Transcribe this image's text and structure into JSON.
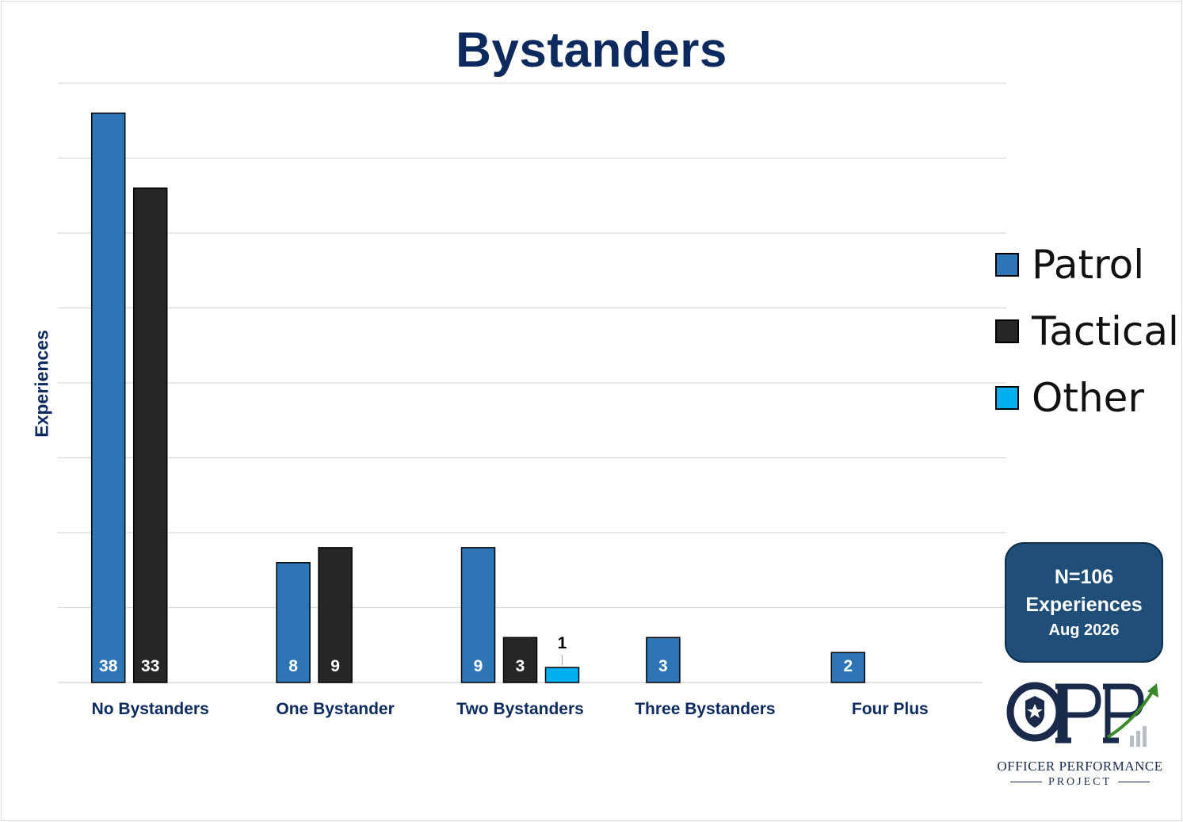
{
  "chart_data": {
    "type": "bar",
    "title": "Bystanders",
    "xlabel": "",
    "ylabel": "Experiences",
    "categories": [
      "No Bystanders",
      "One Bystander",
      "Two Bystanders",
      "Three Bystanders",
      "Four Plus"
    ],
    "series": [
      {
        "name": "Patrol",
        "color": "#2e75b6",
        "values": [
          38,
          8,
          9,
          3,
          2
        ]
      },
      {
        "name": "Tactical",
        "color": "#262626",
        "values": [
          33,
          9,
          3,
          null,
          null
        ]
      },
      {
        "name": "Other",
        "color": "#00b0f0",
        "values": [
          null,
          null,
          1,
          null,
          null
        ]
      }
    ],
    "ylim": [
      0,
      40
    ],
    "grid": true,
    "legend_position": "right"
  },
  "info_box": {
    "n": "N=106",
    "unit": "Experiences",
    "date": "Aug 2026"
  },
  "logo": {
    "text": "OPP",
    "line1": "OFFICER PERFORMANCE",
    "line2": "PROJECT"
  }
}
